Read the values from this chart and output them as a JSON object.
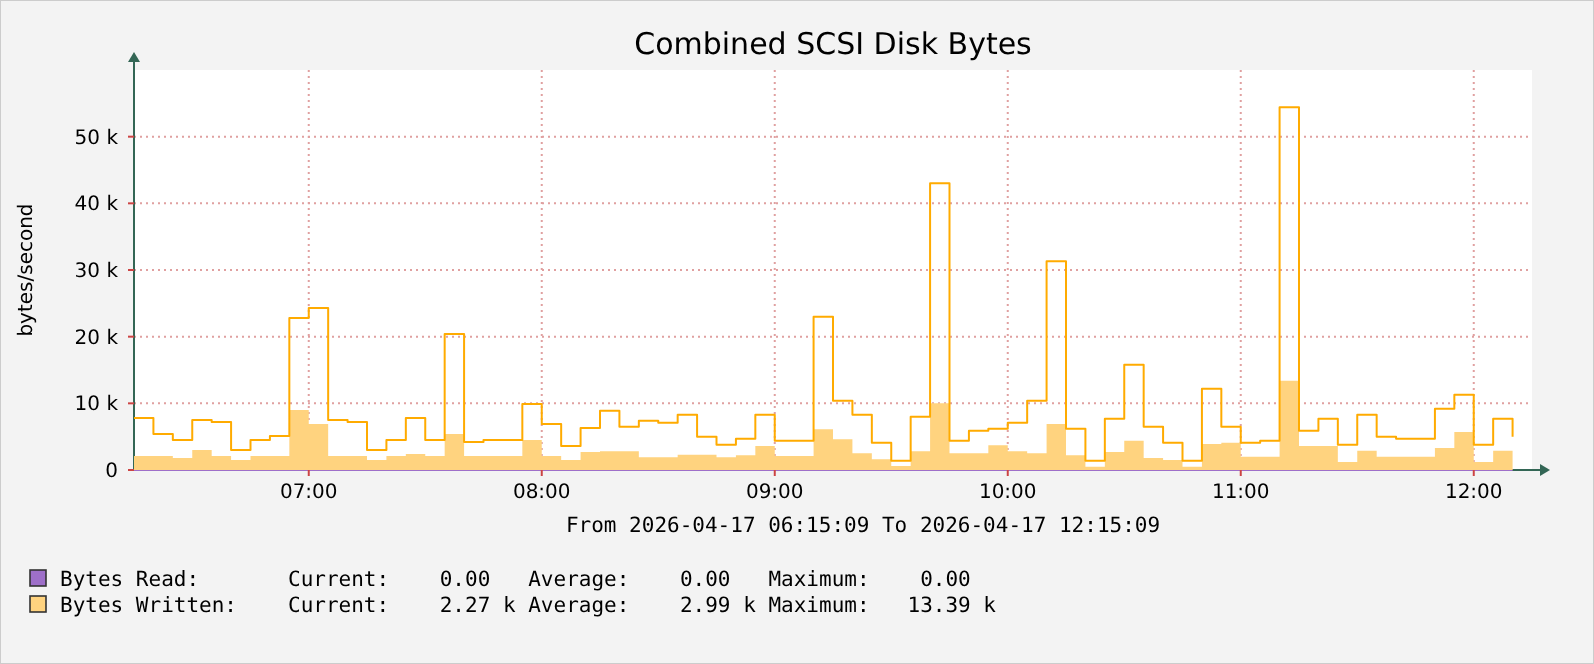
{
  "chart_data": {
    "type": "area",
    "title": "Combined SCSI Disk Bytes",
    "ylabel": "bytes/second",
    "x": [
      "2026-04-17T06:15",
      "2026-04-17T06:20",
      "2026-04-17T06:25",
      "2026-04-17T06:30",
      "2026-04-17T06:35",
      "2026-04-17T06:40",
      "2026-04-17T06:45",
      "2026-04-17T06:50",
      "2026-04-17T06:55",
      "2026-04-17T07:00",
      "2026-04-17T07:05",
      "2026-04-17T07:10",
      "2026-04-17T07:15",
      "2026-04-17T07:20",
      "2026-04-17T07:25",
      "2026-04-17T07:30",
      "2026-04-17T07:35",
      "2026-04-17T07:40",
      "2026-04-17T07:45",
      "2026-04-17T07:50",
      "2026-04-17T07:55",
      "2026-04-17T08:00",
      "2026-04-17T08:05",
      "2026-04-17T08:10",
      "2026-04-17T08:15",
      "2026-04-17T08:20",
      "2026-04-17T08:25",
      "2026-04-17T08:30",
      "2026-04-17T08:35",
      "2026-04-17T08:40",
      "2026-04-17T08:45",
      "2026-04-17T08:50",
      "2026-04-17T08:55",
      "2026-04-17T09:00",
      "2026-04-17T09:05",
      "2026-04-17T09:10",
      "2026-04-17T09:15",
      "2026-04-17T09:20",
      "2026-04-17T09:25",
      "2026-04-17T09:30",
      "2026-04-17T09:35",
      "2026-04-17T09:40",
      "2026-04-17T09:45",
      "2026-04-17T09:50",
      "2026-04-17T09:55",
      "2026-04-17T10:00",
      "2026-04-17T10:05",
      "2026-04-17T10:10",
      "2026-04-17T10:15",
      "2026-04-17T10:20",
      "2026-04-17T10:25",
      "2026-04-17T10:30",
      "2026-04-17T10:35",
      "2026-04-17T10:40",
      "2026-04-17T10:45",
      "2026-04-17T10:50",
      "2026-04-17T10:55",
      "2026-04-17T11:00",
      "2026-04-17T11:05",
      "2026-04-17T11:10",
      "2026-04-17T11:15",
      "2026-04-17T11:20",
      "2026-04-17T11:25",
      "2026-04-17T11:30",
      "2026-04-17T11:35",
      "2026-04-17T11:40",
      "2026-04-17T11:45",
      "2026-04-17T11:50",
      "2026-04-17T11:55",
      "2026-04-17T12:00",
      "2026-04-17T12:05",
      "2026-04-17T12:10"
    ],
    "series": [
      {
        "name": "Bytes Read:",
        "color": "#9e6fc9",
        "type": "step",
        "values": [
          0,
          0,
          0,
          0,
          0,
          0,
          0,
          0,
          0,
          0,
          0,
          0,
          0,
          0,
          0,
          0,
          0,
          0,
          0,
          0,
          0,
          0,
          0,
          0,
          0,
          0,
          0,
          0,
          0,
          0,
          0,
          0,
          0,
          0,
          0,
          0,
          0,
          0,
          0,
          0,
          0,
          0,
          0,
          0,
          0,
          0,
          0,
          0,
          0,
          0,
          0,
          0,
          0,
          0,
          0,
          0,
          0,
          0,
          0,
          0,
          0,
          0,
          0,
          0,
          0,
          0,
          0,
          0,
          0,
          0,
          0,
          0
        ]
      },
      {
        "name": "Bytes Written:",
        "color": "#ffd37f",
        "values": [
          2100,
          2100,
          1800,
          3000,
          2100,
          1500,
          2100,
          2100,
          9000,
          6900,
          2100,
          2100,
          1500,
          2100,
          2400,
          2100,
          5400,
          2100,
          2100,
          2100,
          4500,
          2100,
          1500,
          2700,
          2800,
          2800,
          1900,
          1900,
          2300,
          2300,
          1900,
          2200,
          3600,
          2100,
          2100,
          6100,
          4600,
          2500,
          1600,
          600,
          2800,
          10000,
          2500,
          2500,
          3700,
          2800,
          2500,
          6900,
          2200,
          500,
          2700,
          4400,
          1800,
          1500,
          500,
          3900,
          4100,
          2000,
          2000,
          13400,
          3600,
          3600,
          1200,
          2900,
          2000,
          2000,
          2000,
          3300,
          5700,
          1200,
          2900,
          2300
        ]
      },
      {
        "color": "#ffab00",
        "type": "step",
        "values": [
          7800,
          5400,
          4500,
          7500,
          7200,
          3000,
          4500,
          5100,
          22800,
          24300,
          7500,
          7200,
          3000,
          4500,
          7800,
          4500,
          20400,
          4200,
          4500,
          4500,
          9900,
          6900,
          3600,
          6300,
          8900,
          6500,
          7400,
          7100,
          8300,
          5000,
          3800,
          4700,
          8300,
          4400,
          4400,
          23000,
          10400,
          8300,
          4100,
          1400,
          8000,
          43000,
          4400,
          5900,
          6200,
          7100,
          10400,
          31300,
          6200,
          1400,
          7700,
          15800,
          6500,
          4100,
          1400,
          12200,
          6500,
          4100,
          4400,
          54400,
          5900,
          7700,
          3800,
          8300,
          5000,
          4700,
          4700,
          9200,
          11300,
          3800,
          7700,
          5000
        ]
      }
    ],
    "xlim": [
      "2026-04-17T06:15",
      "2026-04-17T12:15"
    ],
    "xticks": [
      {
        "value": "2026-04-17T07:00",
        "label": "07:00"
      },
      {
        "value": "2026-04-17T08:00",
        "label": "08:00"
      },
      {
        "value": "2026-04-17T09:00",
        "label": "09:00"
      },
      {
        "value": "2026-04-17T10:00",
        "label": "10:00"
      },
      {
        "value": "2026-04-17T11:00",
        "label": "11:00"
      },
      {
        "value": "2026-04-17T12:00",
        "label": "12:00"
      }
    ],
    "ylim": [
      0,
      60000
    ],
    "yticks": [
      0,
      {
        "value": 10000,
        "label": "10 k"
      },
      {
        "value": 20000,
        "label": "20 k"
      },
      {
        "value": 30000,
        "label": "30 k"
      },
      {
        "value": 40000,
        "label": "40 k"
      },
      {
        "value": 50000,
        "label": "50 k"
      }
    ],
    "grid": true,
    "legend": "bottom left",
    "annotations": [
      "From 2026-04-17 06:15:09 To 2026-04-17 12:15:09",
      "Current:    0.00   Average:    0.00   Maximum:    0.00",
      "Current:    2.27 k Average:    2.99 k Maximum:   13.39 k"
    ]
  }
}
